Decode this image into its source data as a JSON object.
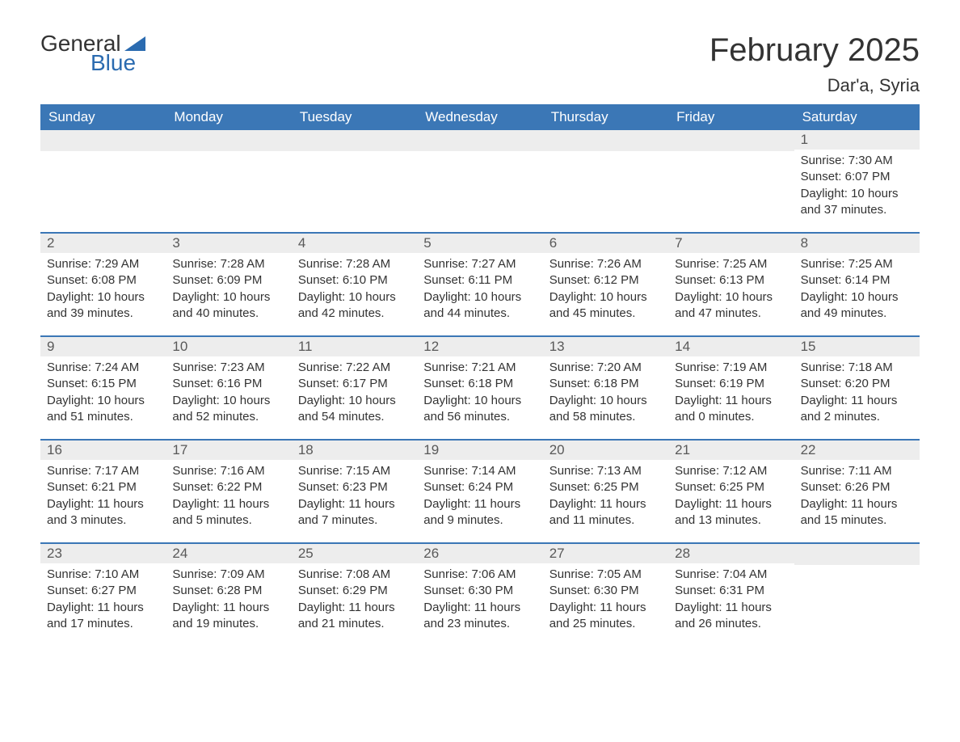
{
  "logo": {
    "general": "General",
    "blue": "Blue",
    "tri_color": "#2b6bb0"
  },
  "title": "February 2025",
  "location": "Dar'a, Syria",
  "colors": {
    "header_bg": "#3b77b6",
    "header_text": "#ffffff",
    "daynum_bg": "#ededed",
    "daynum_text": "#595959",
    "row_border": "#3b77b6",
    "body_text": "#333333",
    "page_bg": "#ffffff"
  },
  "weekdays": [
    "Sunday",
    "Monday",
    "Tuesday",
    "Wednesday",
    "Thursday",
    "Friday",
    "Saturday"
  ],
  "weeks": [
    [
      null,
      null,
      null,
      null,
      null,
      null,
      {
        "n": "1",
        "sr": "Sunrise: 7:30 AM",
        "ss": "Sunset: 6:07 PM",
        "dl": "Daylight: 10 hours and 37 minutes."
      }
    ],
    [
      {
        "n": "2",
        "sr": "Sunrise: 7:29 AM",
        "ss": "Sunset: 6:08 PM",
        "dl": "Daylight: 10 hours and 39 minutes."
      },
      {
        "n": "3",
        "sr": "Sunrise: 7:28 AM",
        "ss": "Sunset: 6:09 PM",
        "dl": "Daylight: 10 hours and 40 minutes."
      },
      {
        "n": "4",
        "sr": "Sunrise: 7:28 AM",
        "ss": "Sunset: 6:10 PM",
        "dl": "Daylight: 10 hours and 42 minutes."
      },
      {
        "n": "5",
        "sr": "Sunrise: 7:27 AM",
        "ss": "Sunset: 6:11 PM",
        "dl": "Daylight: 10 hours and 44 minutes."
      },
      {
        "n": "6",
        "sr": "Sunrise: 7:26 AM",
        "ss": "Sunset: 6:12 PM",
        "dl": "Daylight: 10 hours and 45 minutes."
      },
      {
        "n": "7",
        "sr": "Sunrise: 7:25 AM",
        "ss": "Sunset: 6:13 PM",
        "dl": "Daylight: 10 hours and 47 minutes."
      },
      {
        "n": "8",
        "sr": "Sunrise: 7:25 AM",
        "ss": "Sunset: 6:14 PM",
        "dl": "Daylight: 10 hours and 49 minutes."
      }
    ],
    [
      {
        "n": "9",
        "sr": "Sunrise: 7:24 AM",
        "ss": "Sunset: 6:15 PM",
        "dl": "Daylight: 10 hours and 51 minutes."
      },
      {
        "n": "10",
        "sr": "Sunrise: 7:23 AM",
        "ss": "Sunset: 6:16 PM",
        "dl": "Daylight: 10 hours and 52 minutes."
      },
      {
        "n": "11",
        "sr": "Sunrise: 7:22 AM",
        "ss": "Sunset: 6:17 PM",
        "dl": "Daylight: 10 hours and 54 minutes."
      },
      {
        "n": "12",
        "sr": "Sunrise: 7:21 AM",
        "ss": "Sunset: 6:18 PM",
        "dl": "Daylight: 10 hours and 56 minutes."
      },
      {
        "n": "13",
        "sr": "Sunrise: 7:20 AM",
        "ss": "Sunset: 6:18 PM",
        "dl": "Daylight: 10 hours and 58 minutes."
      },
      {
        "n": "14",
        "sr": "Sunrise: 7:19 AM",
        "ss": "Sunset: 6:19 PM",
        "dl": "Daylight: 11 hours and 0 minutes."
      },
      {
        "n": "15",
        "sr": "Sunrise: 7:18 AM",
        "ss": "Sunset: 6:20 PM",
        "dl": "Daylight: 11 hours and 2 minutes."
      }
    ],
    [
      {
        "n": "16",
        "sr": "Sunrise: 7:17 AM",
        "ss": "Sunset: 6:21 PM",
        "dl": "Daylight: 11 hours and 3 minutes."
      },
      {
        "n": "17",
        "sr": "Sunrise: 7:16 AM",
        "ss": "Sunset: 6:22 PM",
        "dl": "Daylight: 11 hours and 5 minutes."
      },
      {
        "n": "18",
        "sr": "Sunrise: 7:15 AM",
        "ss": "Sunset: 6:23 PM",
        "dl": "Daylight: 11 hours and 7 minutes."
      },
      {
        "n": "19",
        "sr": "Sunrise: 7:14 AM",
        "ss": "Sunset: 6:24 PM",
        "dl": "Daylight: 11 hours and 9 minutes."
      },
      {
        "n": "20",
        "sr": "Sunrise: 7:13 AM",
        "ss": "Sunset: 6:25 PM",
        "dl": "Daylight: 11 hours and 11 minutes."
      },
      {
        "n": "21",
        "sr": "Sunrise: 7:12 AM",
        "ss": "Sunset: 6:25 PM",
        "dl": "Daylight: 11 hours and 13 minutes."
      },
      {
        "n": "22",
        "sr": "Sunrise: 7:11 AM",
        "ss": "Sunset: 6:26 PM",
        "dl": "Daylight: 11 hours and 15 minutes."
      }
    ],
    [
      {
        "n": "23",
        "sr": "Sunrise: 7:10 AM",
        "ss": "Sunset: 6:27 PM",
        "dl": "Daylight: 11 hours and 17 minutes."
      },
      {
        "n": "24",
        "sr": "Sunrise: 7:09 AM",
        "ss": "Sunset: 6:28 PM",
        "dl": "Daylight: 11 hours and 19 minutes."
      },
      {
        "n": "25",
        "sr": "Sunrise: 7:08 AM",
        "ss": "Sunset: 6:29 PM",
        "dl": "Daylight: 11 hours and 21 minutes."
      },
      {
        "n": "26",
        "sr": "Sunrise: 7:06 AM",
        "ss": "Sunset: 6:30 PM",
        "dl": "Daylight: 11 hours and 23 minutes."
      },
      {
        "n": "27",
        "sr": "Sunrise: 7:05 AM",
        "ss": "Sunset: 6:30 PM",
        "dl": "Daylight: 11 hours and 25 minutes."
      },
      {
        "n": "28",
        "sr": "Sunrise: 7:04 AM",
        "ss": "Sunset: 6:31 PM",
        "dl": "Daylight: 11 hours and 26 minutes."
      },
      null
    ]
  ]
}
